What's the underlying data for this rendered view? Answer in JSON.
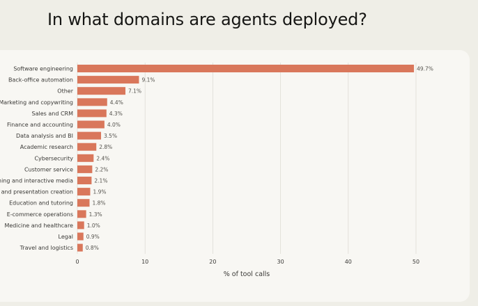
{
  "headline": "In what domains are agents deployed?",
  "chart_data": {
    "type": "bar",
    "orientation": "horizontal",
    "title": "In what domains are agents deployed?",
    "xlabel": "% of tool calls",
    "ylabel": "",
    "xlim": [
      0,
      50
    ],
    "xticks": [
      0,
      10,
      20,
      30,
      40,
      50
    ],
    "grid": true,
    "bar_color": "#d9775b",
    "categories": [
      "Software engineering",
      "Back-office automation",
      "Other",
      "Marketing and copywriting",
      "Sales and CRM",
      "Finance and accounting",
      "Data analysis and BI",
      "Academic research",
      "Cybersecurity",
      "Customer service",
      "Gaming and interactive media",
      "Document and presentation creation",
      "Education and tutoring",
      "E-commerce operations",
      "Medicine and healthcare",
      "Legal",
      "Travel and logistics"
    ],
    "values": [
      49.7,
      9.1,
      7.1,
      4.4,
      4.3,
      4.0,
      3.5,
      2.8,
      2.4,
      2.2,
      2.1,
      1.9,
      1.8,
      1.3,
      1.0,
      0.9,
      0.8
    ],
    "value_labels": [
      "49.7%",
      "9.1%",
      "7.1%",
      "4.4%",
      "4.3%",
      "4.0%",
      "3.5%",
      "2.8%",
      "2.4%",
      "2.2%",
      "2.1%",
      "1.9%",
      "1.8%",
      "1.3%",
      "1.0%",
      "0.9%",
      "0.8%"
    ]
  }
}
